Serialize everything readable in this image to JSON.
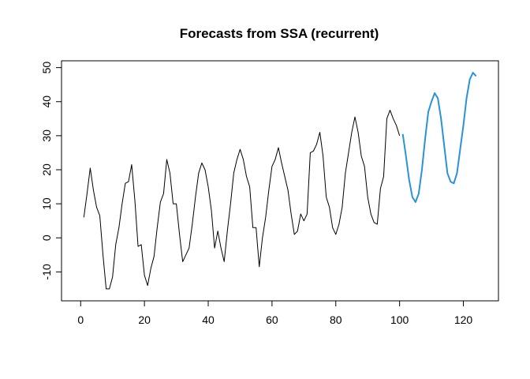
{
  "chart_data": {
    "type": "line",
    "title": "Forecasts from SSA (recurrent)",
    "xlabel": "",
    "ylabel": "",
    "xlim": [
      -6,
      131
    ],
    "ylim": [
      -18.5,
      52
    ],
    "xticks": [
      0,
      20,
      40,
      60,
      80,
      100,
      120
    ],
    "yticks": [
      -10,
      0,
      10,
      20,
      30,
      40,
      50
    ],
    "grid": false,
    "legend": "none",
    "series": [
      {
        "role": "observed",
        "color": "#000000",
        "x": [
          1,
          2,
          3,
          4,
          5,
          6,
          7,
          8,
          9,
          10,
          11,
          12,
          13,
          14,
          15,
          16,
          17,
          18,
          19,
          20,
          21,
          22,
          23,
          24,
          25,
          26,
          27,
          28,
          29,
          30,
          31,
          32,
          33,
          34,
          35,
          36,
          37,
          38,
          39,
          40,
          41,
          42,
          43,
          44,
          45,
          46,
          47,
          48,
          49,
          50,
          51,
          52,
          53,
          54,
          55,
          56,
          57,
          58,
          59,
          60,
          61,
          62,
          63,
          64,
          65,
          66,
          67,
          68,
          69,
          70,
          71,
          72,
          73,
          74,
          75,
          76,
          77,
          78,
          79,
          80,
          81,
          82,
          83,
          84,
          85,
          86,
          87,
          88,
          89,
          90,
          91,
          92,
          93,
          94,
          95,
          96,
          97,
          98,
          99,
          100
        ],
        "values": [
          6,
          13,
          20.5,
          14,
          9,
          6.5,
          -5,
          -15,
          -15,
          -11.5,
          -2,
          3,
          10,
          16,
          16.5,
          21.5,
          11,
          -2.5,
          -2,
          -11,
          -14,
          -9,
          -5.5,
          3,
          10.5,
          13,
          23,
          19,
          10,
          10,
          1,
          -7,
          -5,
          -3,
          4,
          12,
          19,
          22,
          20,
          15,
          8,
          -3,
          2,
          -3,
          -7,
          2,
          10,
          19,
          23,
          26,
          23,
          18,
          15,
          3,
          3,
          -8.5,
          0,
          6,
          14,
          21,
          23,
          26.5,
          22,
          18,
          14,
          7,
          1,
          2,
          7,
          5,
          7,
          25,
          25.5,
          27.5,
          31,
          24,
          12,
          9,
          3,
          1,
          4,
          9,
          19,
          25,
          31,
          35.5,
          31,
          24,
          21,
          12,
          7,
          4.5,
          4,
          14.5,
          18,
          35,
          37.5,
          35,
          33,
          30
        ]
      },
      {
        "role": "forecast",
        "color": "#2993d6",
        "x": [
          101,
          102,
          103,
          104,
          105,
          106,
          107,
          108,
          109,
          110,
          111,
          112,
          113,
          114,
          115,
          116,
          117,
          118,
          119,
          120,
          121,
          122,
          123,
          124
        ],
        "values": [
          30.5,
          24,
          17,
          12,
          10.5,
          13,
          20,
          29,
          37,
          40,
          42.5,
          41,
          35,
          27,
          19,
          16.5,
          16,
          19,
          26,
          33,
          41,
          46.5,
          48.5,
          47.5
        ]
      }
    ]
  }
}
